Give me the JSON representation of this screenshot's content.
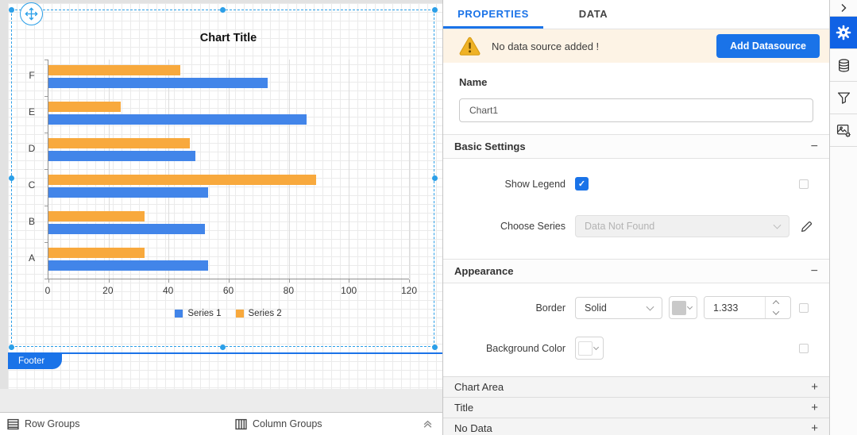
{
  "chart_data": {
    "type": "bar",
    "orientation": "horizontal",
    "title": "Chart Title",
    "categories": [
      "F",
      "E",
      "D",
      "C",
      "B",
      "A"
    ],
    "series": [
      {
        "name": "Series 1",
        "color": "#4285e9",
        "values": [
          73,
          86,
          49,
          53,
          52,
          53
        ]
      },
      {
        "name": "Series 2",
        "color": "#f8a93d",
        "values": [
          44,
          24,
          47,
          89,
          32,
          32
        ]
      }
    ],
    "xlabel": "",
    "ylabel": "",
    "xlim": [
      0,
      120
    ],
    "xticks": [
      0,
      20,
      40,
      60,
      80,
      100,
      120
    ],
    "grid": true,
    "legend_position": "bottom"
  },
  "canvas": {
    "footer_tab": "Footer",
    "row_groups_label": "Row Groups",
    "column_groups_label": "Column Groups"
  },
  "panel": {
    "tabs": [
      {
        "label": "PROPERTIES",
        "active": true
      },
      {
        "label": "DATA",
        "active": false
      }
    ],
    "warning": {
      "message": "No data source added !",
      "button": "Add Datasource"
    },
    "name_field": {
      "label": "Name",
      "value": "Chart1"
    },
    "sections": {
      "basic_settings": {
        "title": "Basic Settings",
        "toggle": "−",
        "show_legend": {
          "label": "Show Legend",
          "checked": true
        },
        "choose_series": {
          "label": "Choose Series",
          "value": "Data Not Found",
          "disabled": true
        }
      },
      "appearance": {
        "title": "Appearance",
        "toggle": "−",
        "border": {
          "label": "Border",
          "style": "Solid",
          "width": "1.333"
        },
        "background_color": {
          "label": "Background Color"
        }
      },
      "collapsed": [
        {
          "title": "Chart Area",
          "toggle": "+"
        },
        {
          "title": "Title",
          "toggle": "+"
        },
        {
          "title": "No Data",
          "toggle": "+"
        }
      ]
    },
    "toolbar_icons": [
      "collapse-arrow-icon",
      "settings-gear-icon",
      "datasource-icon",
      "filter-icon",
      "image-settings-icon"
    ]
  },
  "colors": {
    "accent": "#1a73e8",
    "series1": "#4285e9",
    "series2": "#f8a93d",
    "selection": "#2b9fe8",
    "warning_bg": "#fdf3e5",
    "warning_icon": "#efb226",
    "active_tool_bg": "#1062e5"
  }
}
